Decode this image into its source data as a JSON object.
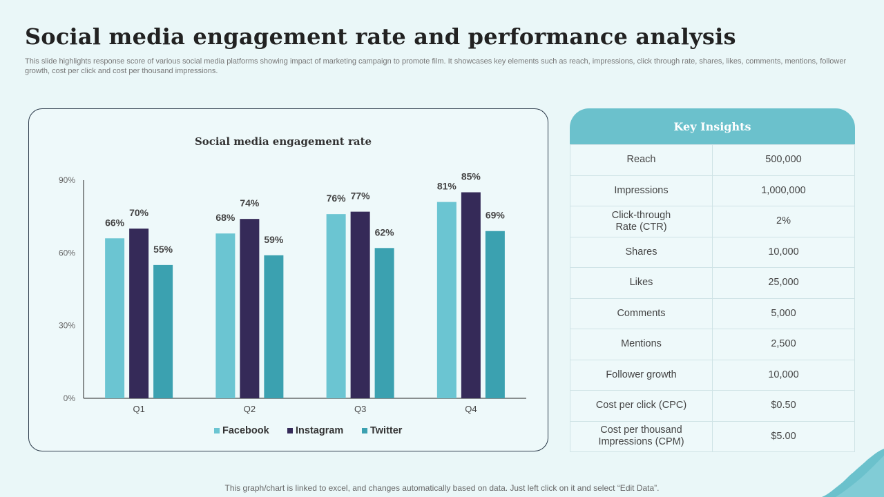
{
  "page": {
    "title": "Social media engagement rate and performance analysis",
    "subtitle": "This slide highlights response score of various social media platforms showing impact of marketing campaign to promote film. It showcases key elements such as reach, impressions, click through rate, shares, likes, comments, mentions, follower growth, cost per click and cost per thousand impressions.",
    "footer": "This graph/chart is linked to excel, and changes automatically based on data.  Just left click on it and select “Edit Data”."
  },
  "chart_data": {
    "type": "bar",
    "title": "Social media engagement rate",
    "categories": [
      "Q1",
      "Q2",
      "Q3",
      "Q4"
    ],
    "series": [
      {
        "name": "Facebook",
        "values": [
          66,
          68,
          76,
          81
        ],
        "labels": [
          "66%",
          "68%",
          "76%",
          "81%"
        ],
        "color": "#6bc5d2"
      },
      {
        "name": "Instagram",
        "values": [
          70,
          74,
          77,
          85
        ],
        "labels": [
          "70%",
          "74%",
          "77%",
          "85%"
        ],
        "color": "#352a58"
      },
      {
        "name": "Twitter",
        "values": [
          55,
          59,
          62,
          69
        ],
        "labels": [
          "55%",
          "59%",
          "62%",
          "69%"
        ],
        "color": "#3ba1b0"
      }
    ],
    "ylim": [
      0,
      90
    ],
    "yticks": [
      0,
      30,
      60,
      90
    ],
    "ytick_labels": [
      "0%",
      "30%",
      "60%",
      "90%"
    ],
    "xlabel": "",
    "ylabel": "",
    "legend_position": "bottom",
    "grid": false
  },
  "insights": {
    "header": "Key Insights",
    "rows": [
      {
        "label": "Reach",
        "value": "500,000"
      },
      {
        "label": "Impressions",
        "value": "1,000,000"
      },
      {
        "label": "Click-through\nRate (CTR)",
        "value": "2%"
      },
      {
        "label": "Shares",
        "value": "10,000"
      },
      {
        "label": "Likes",
        "value": "25,000"
      },
      {
        "label": "Comments",
        "value": "5,000"
      },
      {
        "label": "Mentions",
        "value": "2,500"
      },
      {
        "label": "Follower growth",
        "value": "10,000"
      },
      {
        "label": "Cost per click (CPC)",
        "value": "$0.50"
      },
      {
        "label": "Cost per thousand\nImpressions (CPM)",
        "value": "$5.00"
      }
    ]
  },
  "colors": {
    "accent": "#6bc1cc",
    "background": "#eaf7f8"
  }
}
